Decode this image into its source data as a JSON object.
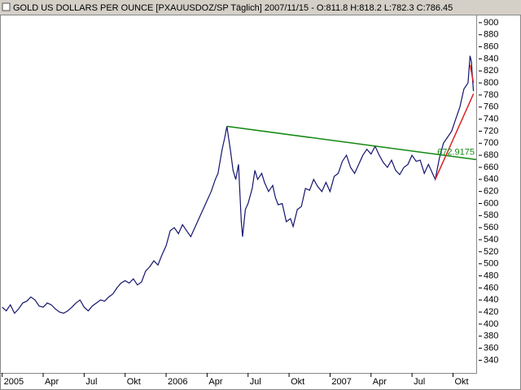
{
  "chart_data": {
    "type": "line",
    "title": "GOLD US DOLLARS PER OUNCE [PXAUUSDOZ/SP  Täglich] 2007/11/15 - O:811.8 H:818.2 L:782.3 C:786.45",
    "xlim": [
      -0.1,
      34.7
    ],
    "ylim": [
      319,
      912
    ],
    "xticks": [
      {
        "value": 0,
        "label": "2005"
      },
      {
        "value": 3,
        "label": "Apr"
      },
      {
        "value": 6,
        "label": "Jul"
      },
      {
        "value": 9,
        "label": "Okt"
      },
      {
        "value": 12,
        "label": "2006"
      },
      {
        "value": 15,
        "label": "Apr"
      },
      {
        "value": 18,
        "label": "Jul"
      },
      {
        "value": 21,
        "label": "Okt"
      },
      {
        "value": 24,
        "label": "2007"
      },
      {
        "value": 27,
        "label": "Apr"
      },
      {
        "value": 30,
        "label": "Jul"
      },
      {
        "value": 33,
        "label": "Okt"
      }
    ],
    "yticks": [
      340,
      360,
      380,
      400,
      420,
      440,
      460,
      480,
      500,
      520,
      540,
      560,
      580,
      600,
      620,
      640,
      660,
      680,
      700,
      720,
      740,
      760,
      780,
      800,
      820,
      840,
      860,
      880,
      900
    ],
    "series": [
      {
        "name": "GOLD",
        "color": "#14146e",
        "x": [
          0,
          0.3,
          0.6,
          0.9,
          1.2,
          1.5,
          1.8,
          2.1,
          2.4,
          2.7,
          3.0,
          3.3,
          3.6,
          3.9,
          4.2,
          4.5,
          4.8,
          5.1,
          5.4,
          5.7,
          6.0,
          6.3,
          6.6,
          6.9,
          7.2,
          7.5,
          7.8,
          8.1,
          8.4,
          8.7,
          9.0,
          9.3,
          9.6,
          9.9,
          10.2,
          10.5,
          10.8,
          11.1,
          11.4,
          11.7,
          12.0,
          12.3,
          12.6,
          12.9,
          13.2,
          13.5,
          13.8,
          14.1,
          14.4,
          14.7,
          15.0,
          15.3,
          15.6,
          15.8,
          16.1,
          16.3,
          16.45,
          16.7,
          16.9,
          17.1,
          17.3,
          17.5,
          17.6,
          17.8,
          18.0,
          18.3,
          18.5,
          18.7,
          19.0,
          19.2,
          19.5,
          19.8,
          20.0,
          20.2,
          20.5,
          20.8,
          21.1,
          21.3,
          21.6,
          21.9,
          22.2,
          22.5,
          22.8,
          23.1,
          23.4,
          23.7,
          24.0,
          24.3,
          24.6,
          24.9,
          25.2,
          25.5,
          25.8,
          26.1,
          26.4,
          26.7,
          27.0,
          27.3,
          27.6,
          27.9,
          28.2,
          28.5,
          28.8,
          29.1,
          29.4,
          29.7,
          30.0,
          30.3,
          30.6,
          30.9,
          31.2,
          31.5,
          31.7,
          32.0,
          32.3,
          32.6,
          32.9,
          33.2,
          33.5,
          33.8,
          34.1,
          34.25,
          34.35,
          34.45,
          34.5
        ],
        "values": [
          428,
          422,
          432,
          418,
          425,
          435,
          438,
          445,
          440,
          430,
          428,
          435,
          432,
          425,
          420,
          418,
          422,
          428,
          435,
          440,
          428,
          422,
          430,
          435,
          440,
          438,
          445,
          450,
          460,
          468,
          472,
          468,
          475,
          465,
          470,
          488,
          495,
          505,
          498,
          515,
          530,
          555,
          560,
          550,
          565,
          555,
          545,
          560,
          575,
          590,
          605,
          620,
          640,
          650,
          690,
          710,
          728,
          690,
          655,
          640,
          665,
          570,
          545,
          590,
          600,
          625,
          655,
          640,
          650,
          635,
          620,
          630,
          610,
          598,
          600,
          570,
          575,
          562,
          590,
          595,
          625,
          622,
          640,
          628,
          620,
          635,
          620,
          645,
          650,
          670,
          680,
          660,
          650,
          665,
          680,
          690,
          682,
          695,
          680,
          668,
          660,
          672,
          655,
          648,
          660,
          665,
          680,
          670,
          672,
          650,
          665,
          650,
          640,
          675,
          700,
          710,
          720,
          740,
          760,
          790,
          800,
          845,
          835,
          800,
          786.45
        ]
      }
    ],
    "trendlines": [
      {
        "color": "#118811",
        "x": [
          16.45,
          34.7
        ],
        "values": [
          728,
          672.9175
        ]
      },
      {
        "color": "#dd2222",
        "x": [
          31.7,
          34.5
        ],
        "values": [
          640,
          782
        ]
      },
      {
        "color": "#dd2222",
        "x": [
          34.25,
          34.5
        ],
        "values": [
          830,
          800
        ]
      }
    ]
  }
}
